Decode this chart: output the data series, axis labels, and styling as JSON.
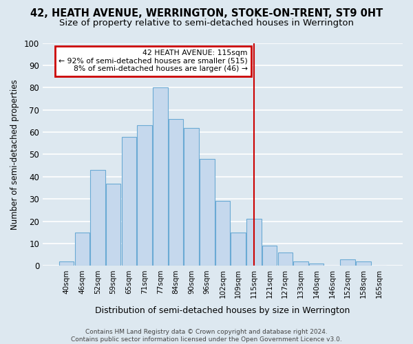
{
  "title": "42, HEATH AVENUE, WERRINGTON, STOKE-ON-TRENT, ST9 0HT",
  "subtitle": "Size of property relative to semi-detached houses in Werrington",
  "xlabel": "Distribution of semi-detached houses by size in Werrington",
  "ylabel": "Number of semi-detached properties",
  "bar_labels": [
    "40sqm",
    "46sqm",
    "52sqm",
    "59sqm",
    "65sqm",
    "71sqm",
    "77sqm",
    "84sqm",
    "90sqm",
    "96sqm",
    "102sqm",
    "109sqm",
    "115sqm",
    "121sqm",
    "127sqm",
    "133sqm",
    "140sqm",
    "146sqm",
    "152sqm",
    "158sqm",
    "165sqm"
  ],
  "bar_values": [
    2,
    15,
    43,
    37,
    58,
    63,
    80,
    66,
    62,
    48,
    29,
    15,
    21,
    9,
    6,
    2,
    1,
    0,
    3,
    2,
    0
  ],
  "bar_color": "#c5d8ed",
  "bar_edge_color": "#6aaad4",
  "background_color": "#dde8f0",
  "grid_color": "#ffffff",
  "vline_x_index": 12,
  "vline_color": "#cc0000",
  "annotation_title": "42 HEATH AVENUE: 115sqm",
  "annotation_line1": "← 92% of semi-detached houses are smaller (515)",
  "annotation_line2": "8% of semi-detached houses are larger (46) →",
  "footer_line1": "Contains HM Land Registry data © Crown copyright and database right 2024.",
  "footer_line2": "Contains public sector information licensed under the Open Government Licence v3.0.",
  "ylim": [
    0,
    100
  ],
  "yticks": [
    0,
    10,
    20,
    30,
    40,
    50,
    60,
    70,
    80,
    90,
    100
  ],
  "title_fontsize": 10.5,
  "subtitle_fontsize": 9.5,
  "footer_fontsize": 6.5,
  "ylabel_fontsize": 8.5,
  "xlabel_fontsize": 9.0
}
